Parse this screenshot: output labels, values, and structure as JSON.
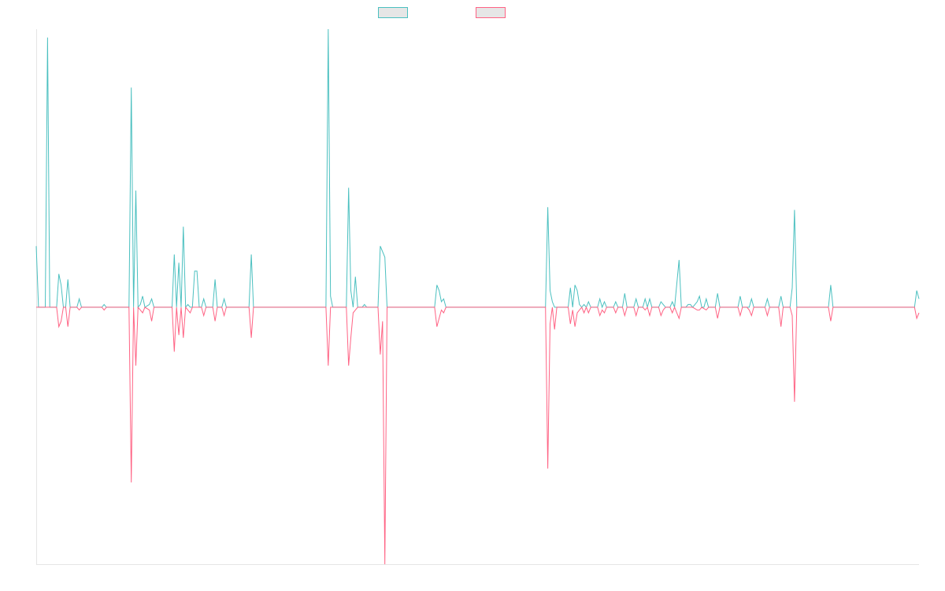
{
  "chart_data": {
    "type": "line",
    "title": "",
    "xlabel": "",
    "ylabel": "",
    "xlim": [
      0,
      390
    ],
    "ylim": [
      -92.4,
      100
    ],
    "grid": false,
    "legend_position": "top",
    "series": [
      {
        "name": "",
        "color": "#4bc0c0",
        "points": [
          [
            0,
            22
          ],
          [
            1,
            0
          ],
          [
            4,
            0
          ],
          [
            5,
            97
          ],
          [
            6,
            0
          ],
          [
            9,
            0
          ],
          [
            10,
            12
          ],
          [
            11,
            8
          ],
          [
            12,
            0
          ],
          [
            13,
            0
          ],
          [
            14,
            10
          ],
          [
            15,
            0
          ],
          [
            18,
            0
          ],
          [
            19,
            3
          ],
          [
            20,
            0
          ],
          [
            29,
            0
          ],
          [
            30,
            1
          ],
          [
            31,
            0
          ],
          [
            41,
            0
          ],
          [
            42,
            79
          ],
          [
            43,
            0
          ],
          [
            44,
            42
          ],
          [
            45,
            0
          ],
          [
            46,
            1
          ],
          [
            47,
            4
          ],
          [
            48,
            0
          ],
          [
            50,
            1
          ],
          [
            51,
            3
          ],
          [
            52,
            0
          ],
          [
            60,
            0
          ],
          [
            61,
            19
          ],
          [
            62,
            0
          ],
          [
            63,
            16
          ],
          [
            64,
            0
          ],
          [
            65,
            29
          ],
          [
            66,
            0
          ],
          [
            67,
            1
          ],
          [
            68,
            0
          ],
          [
            69,
            0
          ],
          [
            70,
            13
          ],
          [
            71,
            13
          ],
          [
            72,
            0
          ],
          [
            73,
            0
          ],
          [
            74,
            3
          ],
          [
            75,
            0
          ],
          [
            78,
            0
          ],
          [
            79,
            10
          ],
          [
            80,
            0
          ],
          [
            82,
            0
          ],
          [
            83,
            3
          ],
          [
            84,
            0
          ],
          [
            94,
            0
          ],
          [
            95,
            19
          ],
          [
            96,
            0
          ],
          [
            128,
            0
          ],
          [
            129,
            100
          ],
          [
            130,
            4
          ],
          [
            131,
            0
          ],
          [
            137,
            0
          ],
          [
            138,
            43
          ],
          [
            139,
            6
          ],
          [
            140,
            0
          ],
          [
            141,
            11
          ],
          [
            142,
            0
          ],
          [
            144,
            0
          ],
          [
            145,
            1
          ],
          [
            146,
            0
          ],
          [
            151,
            0
          ],
          [
            152,
            22
          ],
          [
            154,
            18
          ],
          [
            155,
            0
          ],
          [
            176,
            0
          ],
          [
            177,
            8
          ],
          [
            178,
            6
          ],
          [
            179,
            2
          ],
          [
            180,
            3
          ],
          [
            181,
            0
          ],
          [
            225,
            0
          ],
          [
            226,
            36
          ],
          [
            227,
            6
          ],
          [
            228,
            2
          ],
          [
            229,
            0
          ],
          [
            235,
            0
          ],
          [
            236,
            7
          ],
          [
            237,
            0
          ],
          [
            238,
            8
          ],
          [
            239,
            6
          ],
          [
            240,
            1
          ],
          [
            241,
            0
          ],
          [
            242,
            1
          ],
          [
            243,
            0
          ],
          [
            244,
            2
          ],
          [
            245,
            0
          ],
          [
            248,
            0
          ],
          [
            249,
            3
          ],
          [
            250,
            0
          ],
          [
            251,
            2
          ],
          [
            252,
            0
          ],
          [
            255,
            0
          ],
          [
            256,
            2
          ],
          [
            257,
            0
          ],
          [
            259,
            0
          ],
          [
            260,
            5
          ],
          [
            261,
            0
          ],
          [
            264,
            0
          ],
          [
            265,
            3
          ],
          [
            266,
            0
          ],
          [
            268,
            0
          ],
          [
            269,
            3
          ],
          [
            270,
            0
          ],
          [
            271,
            3
          ],
          [
            272,
            0
          ],
          [
            275,
            0
          ],
          [
            276,
            2
          ],
          [
            277,
            1
          ],
          [
            278,
            0
          ],
          [
            280,
            0
          ],
          [
            281,
            2
          ],
          [
            282,
            0
          ],
          [
            284,
            17
          ],
          [
            285,
            0
          ],
          [
            287,
            0
          ],
          [
            288,
            1
          ],
          [
            289,
            1
          ],
          [
            290,
            0
          ],
          [
            292,
            2
          ],
          [
            293,
            4
          ],
          [
            294,
            0
          ],
          [
            295,
            0
          ],
          [
            296,
            3
          ],
          [
            297,
            0
          ],
          [
            300,
            0
          ],
          [
            301,
            5
          ],
          [
            302,
            0
          ],
          [
            310,
            0
          ],
          [
            311,
            4
          ],
          [
            312,
            0
          ],
          [
            314,
            0
          ],
          [
            315,
            0
          ],
          [
            316,
            3
          ],
          [
            317,
            0
          ],
          [
            322,
            0
          ],
          [
            323,
            3
          ],
          [
            324,
            0
          ],
          [
            328,
            0
          ],
          [
            329,
            4
          ],
          [
            330,
            0
          ],
          [
            333,
            0
          ],
          [
            334,
            7
          ],
          [
            335,
            35
          ],
          [
            336,
            0
          ],
          [
            350,
            0
          ],
          [
            351,
            8
          ],
          [
            352,
            0
          ],
          [
            388,
            0
          ],
          [
            389,
            6
          ],
          [
            390,
            3
          ]
        ]
      },
      {
        "name": "",
        "color": "#ff6384",
        "points": [
          [
            0,
            0
          ],
          [
            9,
            0
          ],
          [
            10,
            -7
          ],
          [
            11,
            -5
          ],
          [
            12,
            0
          ],
          [
            13,
            0
          ],
          [
            14,
            -7
          ],
          [
            15,
            0
          ],
          [
            18,
            0
          ],
          [
            19,
            -1
          ],
          [
            20,
            0
          ],
          [
            29,
            0
          ],
          [
            30,
            -1
          ],
          [
            31,
            0
          ],
          [
            41,
            0
          ],
          [
            42,
            -63
          ],
          [
            43,
            0
          ],
          [
            44,
            -21
          ],
          [
            45,
            0
          ],
          [
            46,
            -1
          ],
          [
            47,
            -2
          ],
          [
            48,
            0
          ],
          [
            50,
            -1
          ],
          [
            51,
            -5
          ],
          [
            52,
            0
          ],
          [
            60,
            0
          ],
          [
            61,
            -16
          ],
          [
            62,
            0
          ],
          [
            63,
            -10
          ],
          [
            64,
            0
          ],
          [
            65,
            -11
          ],
          [
            66,
            0
          ],
          [
            67,
            -1
          ],
          [
            68,
            -2
          ],
          [
            69,
            0
          ],
          [
            73,
            0
          ],
          [
            74,
            -3
          ],
          [
            75,
            0
          ],
          [
            78,
            0
          ],
          [
            79,
            -5
          ],
          [
            80,
            0
          ],
          [
            82,
            0
          ],
          [
            83,
            -3
          ],
          [
            84,
            0
          ],
          [
            94,
            0
          ],
          [
            95,
            -11
          ],
          [
            96,
            0
          ],
          [
            128,
            0
          ],
          [
            129,
            -21
          ],
          [
            130,
            0
          ],
          [
            137,
            0
          ],
          [
            138,
            -21
          ],
          [
            139,
            -11
          ],
          [
            140,
            -2
          ],
          [
            141,
            -1
          ],
          [
            142,
            0
          ],
          [
            151,
            0
          ],
          [
            152,
            -17
          ],
          [
            153,
            -5
          ],
          [
            154,
            -92.4
          ],
          [
            155,
            0
          ],
          [
            176,
            0
          ],
          [
            177,
            -7
          ],
          [
            178,
            -4
          ],
          [
            179,
            -1
          ],
          [
            180,
            -2
          ],
          [
            181,
            0
          ],
          [
            225,
            0
          ],
          [
            226,
            -58
          ],
          [
            227,
            -6
          ],
          [
            228,
            0
          ],
          [
            229,
            -8
          ],
          [
            230,
            0
          ],
          [
            235,
            0
          ],
          [
            236,
            -6
          ],
          [
            237,
            -1
          ],
          [
            238,
            -7
          ],
          [
            239,
            -2
          ],
          [
            240,
            -1
          ],
          [
            241,
            0
          ],
          [
            242,
            -2
          ],
          [
            243,
            0
          ],
          [
            244,
            -2
          ],
          [
            245,
            0
          ],
          [
            248,
            0
          ],
          [
            249,
            -3
          ],
          [
            250,
            -1
          ],
          [
            251,
            -2
          ],
          [
            252,
            0
          ],
          [
            255,
            0
          ],
          [
            256,
            -2
          ],
          [
            257,
            0
          ],
          [
            259,
            0
          ],
          [
            260,
            -3
          ],
          [
            261,
            0
          ],
          [
            264,
            0
          ],
          [
            265,
            -3
          ],
          [
            266,
            0
          ],
          [
            268,
            0
          ],
          [
            269,
            -1
          ],
          [
            270,
            0
          ],
          [
            271,
            -3
          ],
          [
            272,
            0
          ],
          [
            275,
            0
          ],
          [
            276,
            -3
          ],
          [
            277,
            -1
          ],
          [
            278,
            0
          ],
          [
            280,
            0
          ],
          [
            281,
            -2
          ],
          [
            282,
            0
          ],
          [
            284,
            -4
          ],
          [
            285,
            0
          ],
          [
            290,
            0
          ],
          [
            292,
            -1
          ],
          [
            293,
            -1
          ],
          [
            294,
            0
          ],
          [
            296,
            -1
          ],
          [
            297,
            0
          ],
          [
            300,
            0
          ],
          [
            301,
            -4
          ],
          [
            302,
            0
          ],
          [
            310,
            0
          ],
          [
            311,
            -3
          ],
          [
            312,
            0
          ],
          [
            314,
            0
          ],
          [
            315,
            -1
          ],
          [
            316,
            -3
          ],
          [
            317,
            0
          ],
          [
            322,
            0
          ],
          [
            323,
            -3
          ],
          [
            324,
            0
          ],
          [
            328,
            0
          ],
          [
            329,
            -7
          ],
          [
            330,
            0
          ],
          [
            333,
            0
          ],
          [
            334,
            -3
          ],
          [
            335,
            -34
          ],
          [
            336,
            0
          ],
          [
            350,
            0
          ],
          [
            351,
            -5
          ],
          [
            352,
            0
          ],
          [
            388,
            0
          ],
          [
            389,
            -4
          ],
          [
            390,
            -2
          ]
        ]
      }
    ]
  }
}
